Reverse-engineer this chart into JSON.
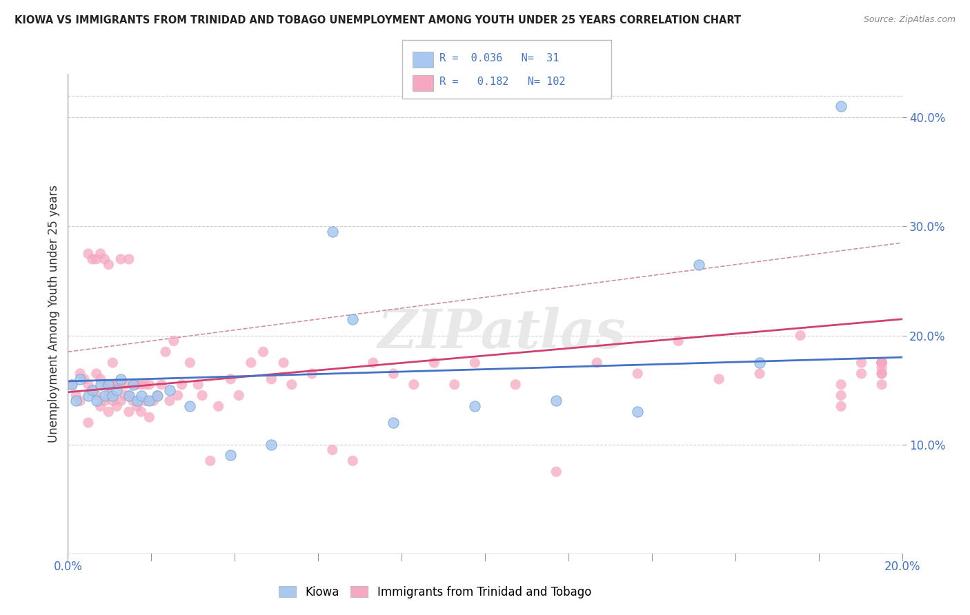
{
  "title": "KIOWA VS IMMIGRANTS FROM TRINIDAD AND TOBAGO UNEMPLOYMENT AMONG YOUTH UNDER 25 YEARS CORRELATION CHART",
  "source": "Source: ZipAtlas.com",
  "ylabel": "Unemployment Among Youth under 25 years",
  "kiowa_R": 0.036,
  "kiowa_N": 31,
  "tt_R": 0.182,
  "tt_N": 102,
  "kiowa_color": "#a8c8f0",
  "tt_color": "#f5a8c0",
  "kiowa_line_color": "#4472c4",
  "tt_line_color": "#d04070",
  "dashed_line_color": "#d090a0",
  "background_color": "#ffffff",
  "watermark": "ZIPatlas",
  "xlim": [
    0.0,
    0.205
  ],
  "ylim": [
    0.0,
    0.44
  ],
  "y_ticks": [
    0.1,
    0.2,
    0.3,
    0.4
  ],
  "y_tick_labels": [
    "10.0%",
    "20.0%",
    "30.0%",
    "40.0%"
  ],
  "kiowa_x": [
    0.001,
    0.002,
    0.003,
    0.005,
    0.006,
    0.007,
    0.008,
    0.009,
    0.01,
    0.011,
    0.012,
    0.013,
    0.015,
    0.016,
    0.017,
    0.018,
    0.02,
    0.022,
    0.025,
    0.03,
    0.04,
    0.05,
    0.065,
    0.07,
    0.08,
    0.1,
    0.12,
    0.14,
    0.155,
    0.17,
    0.19
  ],
  "kiowa_y": [
    0.155,
    0.14,
    0.16,
    0.145,
    0.15,
    0.14,
    0.155,
    0.145,
    0.155,
    0.145,
    0.15,
    0.16,
    0.145,
    0.155,
    0.14,
    0.145,
    0.14,
    0.145,
    0.15,
    0.135,
    0.09,
    0.1,
    0.295,
    0.215,
    0.12,
    0.135,
    0.14,
    0.13,
    0.265,
    0.175,
    0.41
  ],
  "tt_x": [
    0.001,
    0.002,
    0.003,
    0.003,
    0.004,
    0.005,
    0.005,
    0.005,
    0.006,
    0.006,
    0.007,
    0.007,
    0.007,
    0.008,
    0.008,
    0.008,
    0.009,
    0.009,
    0.009,
    0.01,
    0.01,
    0.01,
    0.01,
    0.011,
    0.011,
    0.011,
    0.012,
    0.012,
    0.013,
    0.013,
    0.013,
    0.014,
    0.014,
    0.015,
    0.015,
    0.015,
    0.016,
    0.016,
    0.017,
    0.017,
    0.018,
    0.018,
    0.019,
    0.019,
    0.02,
    0.02,
    0.021,
    0.022,
    0.023,
    0.024,
    0.025,
    0.026,
    0.027,
    0.028,
    0.03,
    0.032,
    0.033,
    0.035,
    0.037,
    0.04,
    0.042,
    0.045,
    0.048,
    0.05,
    0.053,
    0.055,
    0.06,
    0.065,
    0.07,
    0.075,
    0.08,
    0.085,
    0.09,
    0.095,
    0.1,
    0.11,
    0.12,
    0.13,
    0.14,
    0.15,
    0.16,
    0.17,
    0.18,
    0.19,
    0.19,
    0.19,
    0.195,
    0.195,
    0.2,
    0.2,
    0.2,
    0.2,
    0.2,
    0.2,
    0.2,
    0.2,
    0.2,
    0.2,
    0.2,
    0.2,
    0.2,
    0.2
  ],
  "tt_y": [
    0.155,
    0.145,
    0.14,
    0.165,
    0.16,
    0.12,
    0.155,
    0.275,
    0.15,
    0.27,
    0.145,
    0.165,
    0.27,
    0.135,
    0.16,
    0.275,
    0.14,
    0.155,
    0.27,
    0.13,
    0.145,
    0.155,
    0.265,
    0.14,
    0.155,
    0.175,
    0.135,
    0.155,
    0.14,
    0.155,
    0.27,
    0.145,
    0.155,
    0.13,
    0.145,
    0.27,
    0.14,
    0.155,
    0.135,
    0.155,
    0.13,
    0.155,
    0.14,
    0.155,
    0.125,
    0.155,
    0.14,
    0.145,
    0.155,
    0.185,
    0.14,
    0.195,
    0.145,
    0.155,
    0.175,
    0.155,
    0.145,
    0.085,
    0.135,
    0.16,
    0.145,
    0.175,
    0.185,
    0.16,
    0.175,
    0.155,
    0.165,
    0.095,
    0.085,
    0.175,
    0.165,
    0.155,
    0.175,
    0.155,
    0.175,
    0.155,
    0.075,
    0.175,
    0.165,
    0.195,
    0.16,
    0.165,
    0.2,
    0.145,
    0.135,
    0.155,
    0.165,
    0.175,
    0.155,
    0.165,
    0.175,
    0.175,
    0.165,
    0.17,
    0.175,
    0.175,
    0.175,
    0.175,
    0.175,
    0.175,
    0.175,
    0.175
  ],
  "kiowa_line_x0": 0.0,
  "kiowa_line_x1": 0.205,
  "kiowa_line_y0": 0.158,
  "kiowa_line_y1": 0.18,
  "tt_line_x0": 0.0,
  "tt_line_x1": 0.205,
  "tt_line_y0": 0.148,
  "tt_line_y1": 0.215,
  "dash_line_x0": 0.0,
  "dash_line_x1": 0.205,
  "dash_line_y0": 0.185,
  "dash_line_y1": 0.285
}
